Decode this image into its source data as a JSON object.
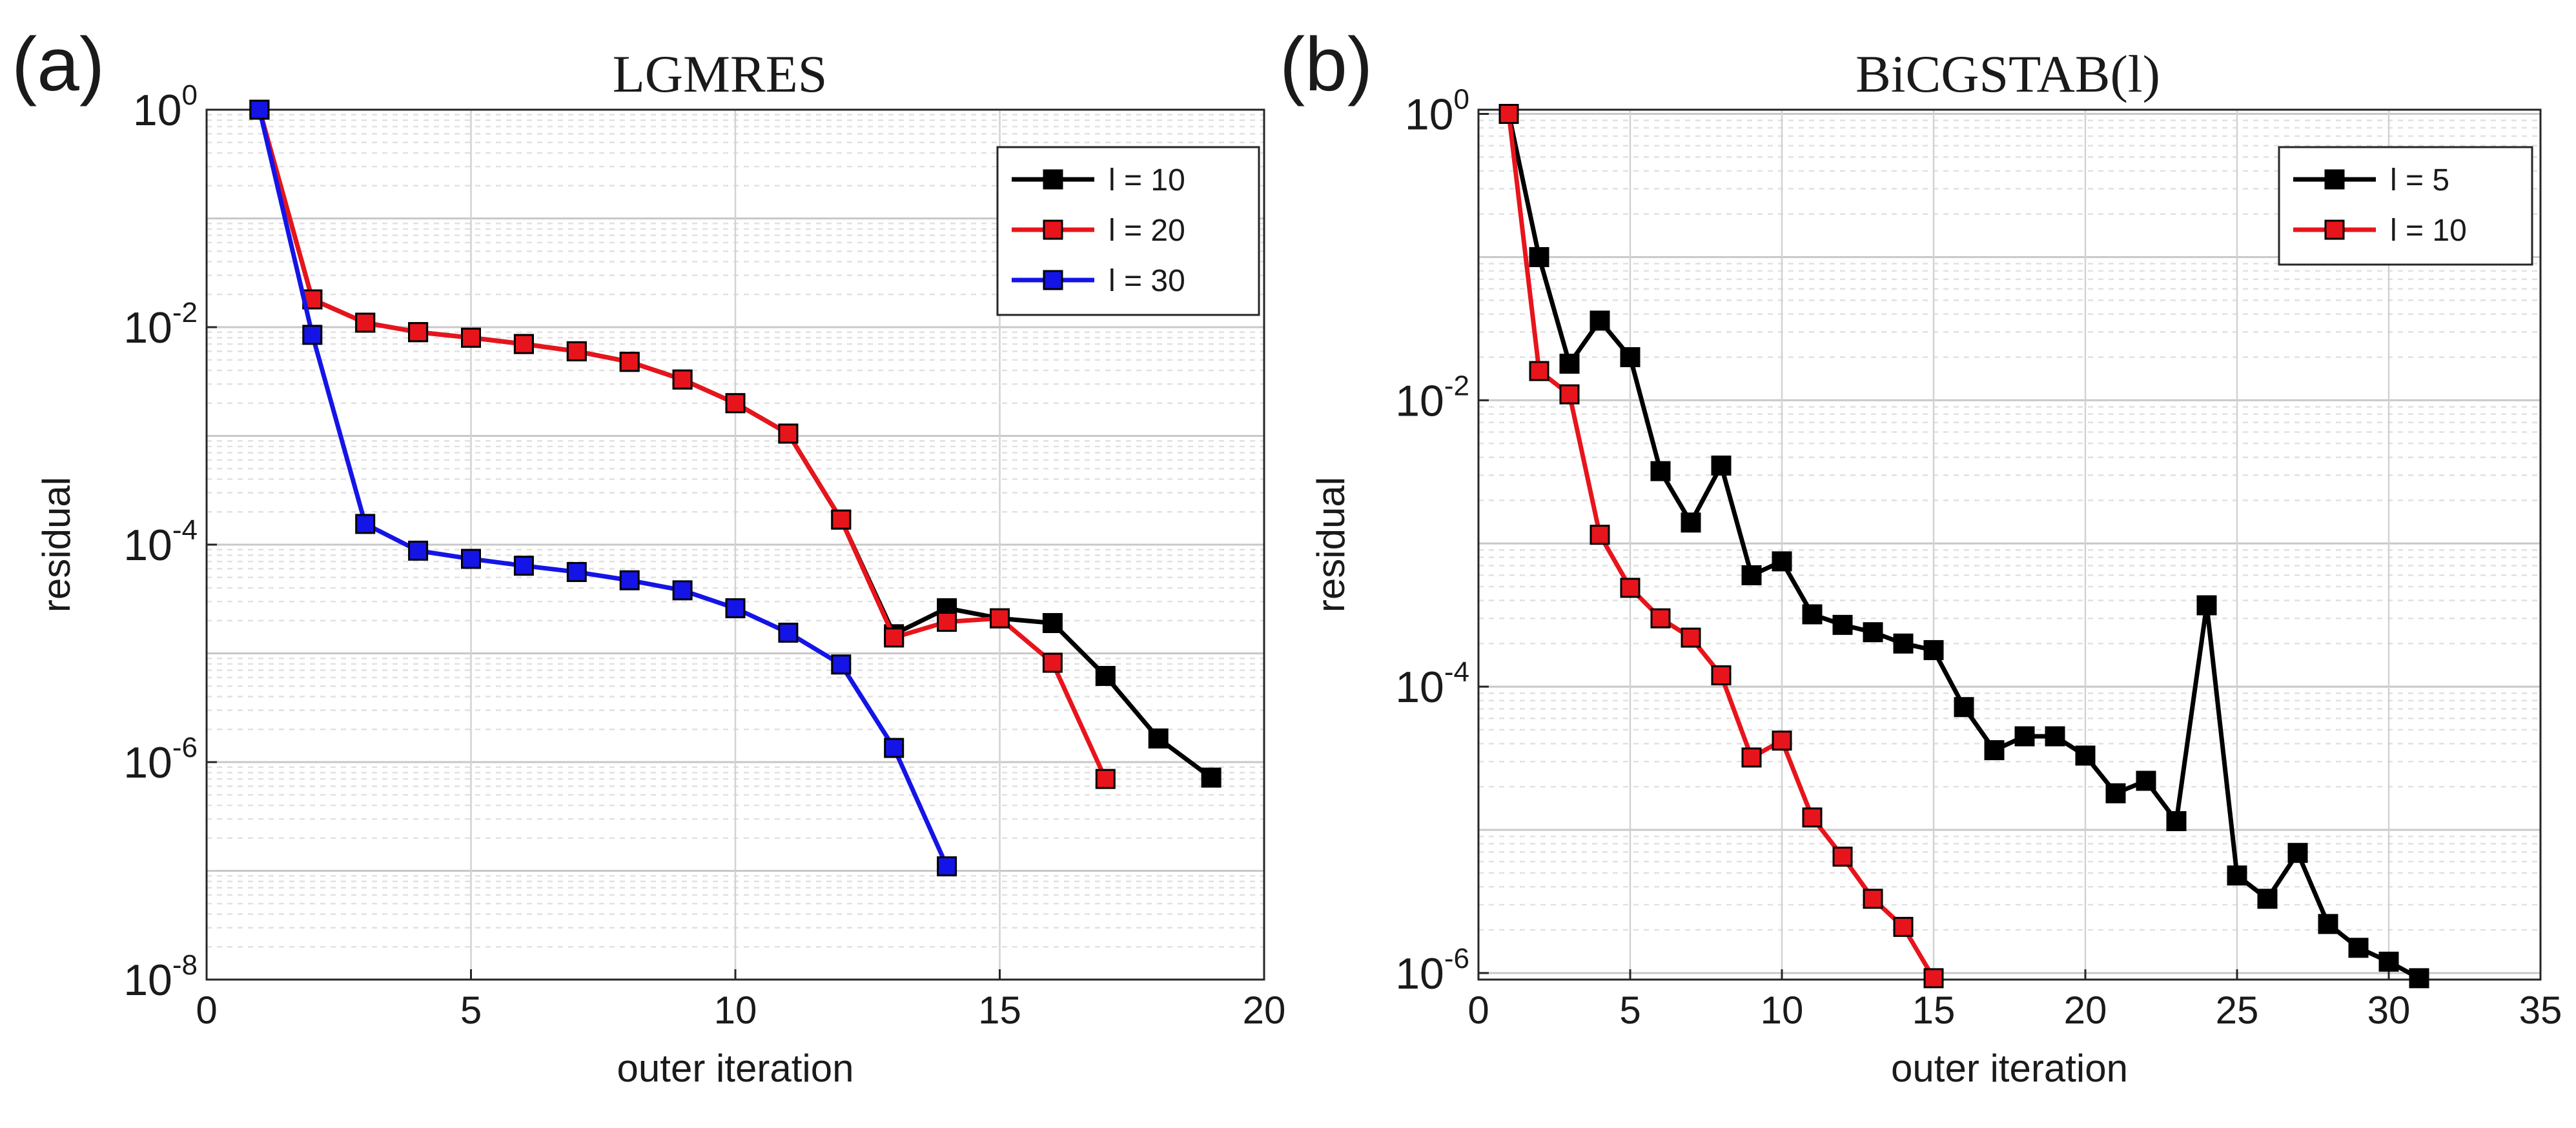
{
  "chart_data": [
    {
      "panel": "(a)",
      "type": "line",
      "title": "LGMRES",
      "xlabel": "outer iteration",
      "ylabel": "residual",
      "yscale": "log",
      "xlim": [
        0,
        20
      ],
      "ylim": [
        1e-08,
        1
      ],
      "xticks": [
        0,
        5,
        10,
        15,
        20
      ],
      "yticks": [
        {
          "base": "10",
          "exp": "0",
          "value": 1
        },
        {
          "base": "10",
          "exp": "-2",
          "value": 0.01
        },
        {
          "base": "10",
          "exp": "-4",
          "value": 0.0001
        },
        {
          "base": "10",
          "exp": "-6",
          "value": 1e-06
        },
        {
          "base": "10",
          "exp": "-8",
          "value": 1e-08
        }
      ],
      "grid": true,
      "legend_position": "top-right",
      "series": [
        {
          "name": "l = 10",
          "color": "#000000",
          "x": [
            1,
            2,
            3,
            4,
            5,
            6,
            7,
            8,
            9,
            10,
            11,
            12,
            13,
            14,
            15,
            16,
            17,
            18,
            19
          ],
          "y": [
            1,
            0.018,
            0.011,
            0.009,
            0.008,
            0.007,
            0.006,
            0.0048,
            0.0033,
            0.002,
            0.00105,
            0.00017,
            1.5e-05,
            2.6e-05,
            2.1e-05,
            1.9e-05,
            6.2e-06,
            1.65e-06,
            7.2e-07
          ]
        },
        {
          "name": "l = 20",
          "color": "#e8141b",
          "x": [
            1,
            2,
            3,
            4,
            5,
            6,
            7,
            8,
            9,
            10,
            11,
            12,
            13,
            14,
            15,
            16,
            17
          ],
          "y": [
            1,
            0.018,
            0.011,
            0.009,
            0.008,
            0.007,
            0.006,
            0.0048,
            0.0033,
            0.002,
            0.00105,
            0.00017,
            1.4e-05,
            1.95e-05,
            2.1e-05,
            8.2e-06,
            7e-07
          ]
        },
        {
          "name": "l = 30",
          "color": "#1414e6",
          "x": [
            1,
            2,
            3,
            4,
            5,
            6,
            7,
            8,
            9,
            10,
            11,
            12,
            13,
            14
          ],
          "y": [
            1,
            0.0085,
            0.000155,
            8.8e-05,
            7.4e-05,
            6.4e-05,
            5.6e-05,
            4.7e-05,
            3.8e-05,
            2.6e-05,
            1.55e-05,
            7.9e-06,
            1.35e-06,
            1.1e-07
          ]
        }
      ]
    },
    {
      "panel": "(b)",
      "type": "line",
      "title": "BiCGSTAB(l)",
      "xlabel": "outer iteration",
      "ylabel": "residual",
      "yscale": "log",
      "xlim": [
        0,
        35
      ],
      "ylim": [
        9e-07,
        1.07
      ],
      "xticks": [
        0,
        5,
        10,
        15,
        20,
        25,
        30,
        35
      ],
      "yticks": [
        {
          "base": "10",
          "exp": "0",
          "value": 1
        },
        {
          "base": "10",
          "exp": "-2",
          "value": 0.01
        },
        {
          "base": "10",
          "exp": "-4",
          "value": 0.0001
        },
        {
          "base": "10",
          "exp": "-6",
          "value": 1e-06
        }
      ],
      "grid": true,
      "legend_position": "top-right",
      "series": [
        {
          "name": "l = 5",
          "color": "#000000",
          "x": [
            1,
            2,
            3,
            4,
            5,
            6,
            7,
            8,
            9,
            10,
            11,
            12,
            13,
            14,
            15,
            16,
            17,
            18,
            19,
            20,
            21,
            22,
            23,
            24,
            25,
            26,
            27,
            28,
            29,
            30,
            31
          ],
          "y": [
            1,
            0.1,
            0.018,
            0.036,
            0.02,
            0.0032,
            0.0014,
            0.0035,
            0.0006,
            0.00075,
            0.00032,
            0.00027,
            0.00024,
            0.0002,
            0.00018,
            7.2e-05,
            3.6e-05,
            4.5e-05,
            4.5e-05,
            3.3e-05,
            1.8e-05,
            2.2e-05,
            1.15e-05,
            0.00037,
            4.8e-06,
            3.3e-06,
            6.9e-06,
            2.2e-06,
            1.5e-06,
            1.2e-06,
            9.2e-07
          ]
        },
        {
          "name": "l = 10",
          "color": "#e8141b",
          "x": [
            1,
            2,
            3,
            4,
            5,
            6,
            7,
            8,
            9,
            10,
            11,
            12,
            13,
            14,
            15
          ],
          "y": [
            1,
            0.016,
            0.011,
            0.00115,
            0.00049,
            0.0003,
            0.00022,
            0.00012,
            3.2e-05,
            4.2e-05,
            1.22e-05,
            6.5e-06,
            3.3e-06,
            2.1e-06,
            9.2e-07
          ]
        }
      ]
    }
  ]
}
